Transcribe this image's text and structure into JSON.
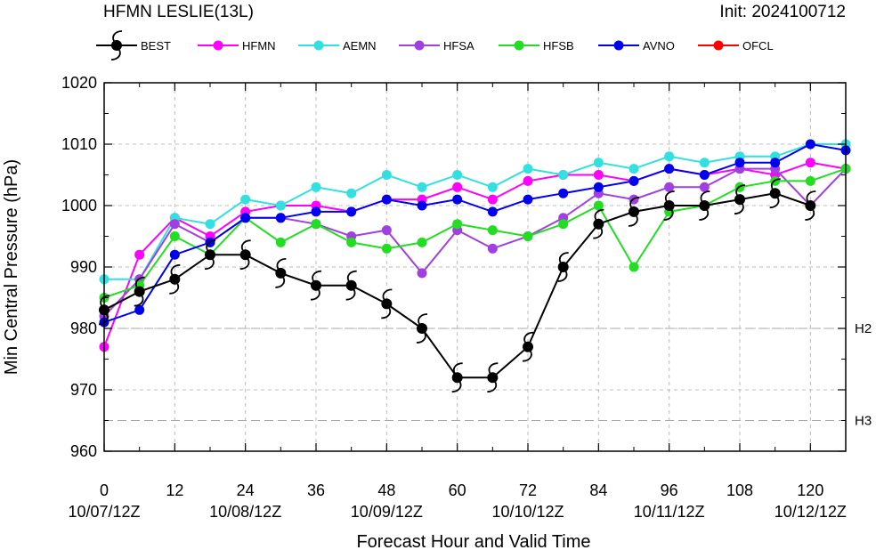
{
  "chart_data": {
    "type": "line",
    "title": "HFMN LESLIE(13L)",
    "init_label": "Init: 2024100712",
    "xlabel": "Forecast Hour and Valid Time",
    "ylabel": "Min Central Pressure (hPa)",
    "xlim": [
      0,
      126
    ],
    "ylim": [
      960,
      1020
    ],
    "x_ticks": [
      0,
      12,
      24,
      36,
      48,
      60,
      72,
      84,
      96,
      108,
      120
    ],
    "y_ticks": [
      960,
      970,
      980,
      990,
      1000,
      1010,
      1020
    ],
    "date_labels": [
      {
        "x": 0,
        "label": "10/07/12Z"
      },
      {
        "x": 24,
        "label": "10/08/12Z"
      },
      {
        "x": 48,
        "label": "10/09/12Z"
      },
      {
        "x": 72,
        "label": "10/10/12Z"
      },
      {
        "x": 96,
        "label": "10/11/12Z"
      },
      {
        "x": 120,
        "label": "10/12/12Z"
      }
    ],
    "grid": true,
    "legend_position": "top",
    "reference_lines": [
      {
        "label": "H2",
        "y": 980
      },
      {
        "label": "H3",
        "y": 965
      }
    ],
    "series": [
      {
        "name": "BEST",
        "color": "#000000",
        "marker": "hurricane-symbol",
        "x": [
          0,
          6,
          12,
          18,
          24,
          30,
          36,
          42,
          48,
          54,
          60,
          66,
          72,
          78,
          84,
          90,
          96,
          102,
          108,
          114,
          120
        ],
        "values": [
          983,
          986,
          988,
          992,
          992,
          989,
          987,
          987,
          984,
          980,
          972,
          972,
          977,
          990,
          997,
          999,
          1000,
          1000,
          1001,
          1002,
          1000
        ]
      },
      {
        "name": "HFMN",
        "color": "#ff00ff",
        "marker": "circle",
        "x": [
          0,
          6,
          12,
          18,
          24,
          30,
          36,
          42,
          48,
          54,
          60,
          66,
          72,
          78,
          84,
          90,
          96,
          102,
          108,
          114,
          120,
          126
        ],
        "values": [
          977,
          992,
          998,
          995,
          999,
          1000,
          1000,
          999,
          1001,
          1001,
          1003,
          1001,
          1004,
          1005,
          1005,
          1004,
          1006,
          1005,
          1006,
          1005,
          1007,
          1006
        ]
      },
      {
        "name": "AEMN",
        "color": "#33e0e0",
        "marker": "circle",
        "x": [
          0,
          6,
          12,
          18,
          24,
          30,
          36,
          42,
          48,
          54,
          60,
          66,
          72,
          78,
          84,
          90,
          96,
          102,
          108,
          114,
          120,
          126
        ],
        "values": [
          988,
          988,
          998,
          997,
          1001,
          1000,
          1003,
          1002,
          1005,
          1003,
          1005,
          1003,
          1006,
          1005,
          1007,
          1006,
          1008,
          1007,
          1008,
          1008,
          1010,
          1010
        ]
      },
      {
        "name": "HFSA",
        "color": "#a040e0",
        "marker": "circle",
        "x": [
          0,
          6,
          12,
          18,
          24,
          30,
          36,
          42,
          48,
          54,
          60,
          66,
          72,
          78,
          84,
          90,
          96,
          102,
          108,
          114,
          120,
          126
        ],
        "values": [
          982,
          988,
          997,
          994,
          998,
          998,
          997,
          995,
          996,
          989,
          996,
          993,
          995,
          998,
          1002,
          1001,
          1003,
          1003,
          1006,
          1006,
          1000,
          1006
        ]
      },
      {
        "name": "HFSB",
        "color": "#22dd22",
        "marker": "circle",
        "x": [
          0,
          6,
          12,
          18,
          24,
          30,
          36,
          42,
          48,
          54,
          60,
          66,
          72,
          78,
          84,
          90,
          96,
          102,
          108,
          114,
          120,
          126
        ],
        "values": [
          985,
          987,
          995,
          992,
          998,
          994,
          997,
          994,
          993,
          994,
          997,
          996,
          995,
          997,
          1000,
          990,
          999,
          1000,
          1003,
          1004,
          1004,
          1006
        ]
      },
      {
        "name": "AVNO",
        "color": "#0000ee",
        "marker": "circle",
        "x": [
          0,
          6,
          12,
          18,
          24,
          30,
          36,
          42,
          48,
          54,
          60,
          66,
          72,
          78,
          84,
          90,
          96,
          102,
          108,
          114,
          120,
          126
        ],
        "values": [
          981,
          983,
          992,
          994,
          998,
          998,
          999,
          999,
          1001,
          1000,
          1001,
          999,
          1001,
          1002,
          1003,
          1004,
          1006,
          1005,
          1007,
          1007,
          1010,
          1009
        ]
      },
      {
        "name": "OFCL",
        "color": "#ff0000",
        "marker": "circle",
        "x": [],
        "values": []
      }
    ]
  }
}
